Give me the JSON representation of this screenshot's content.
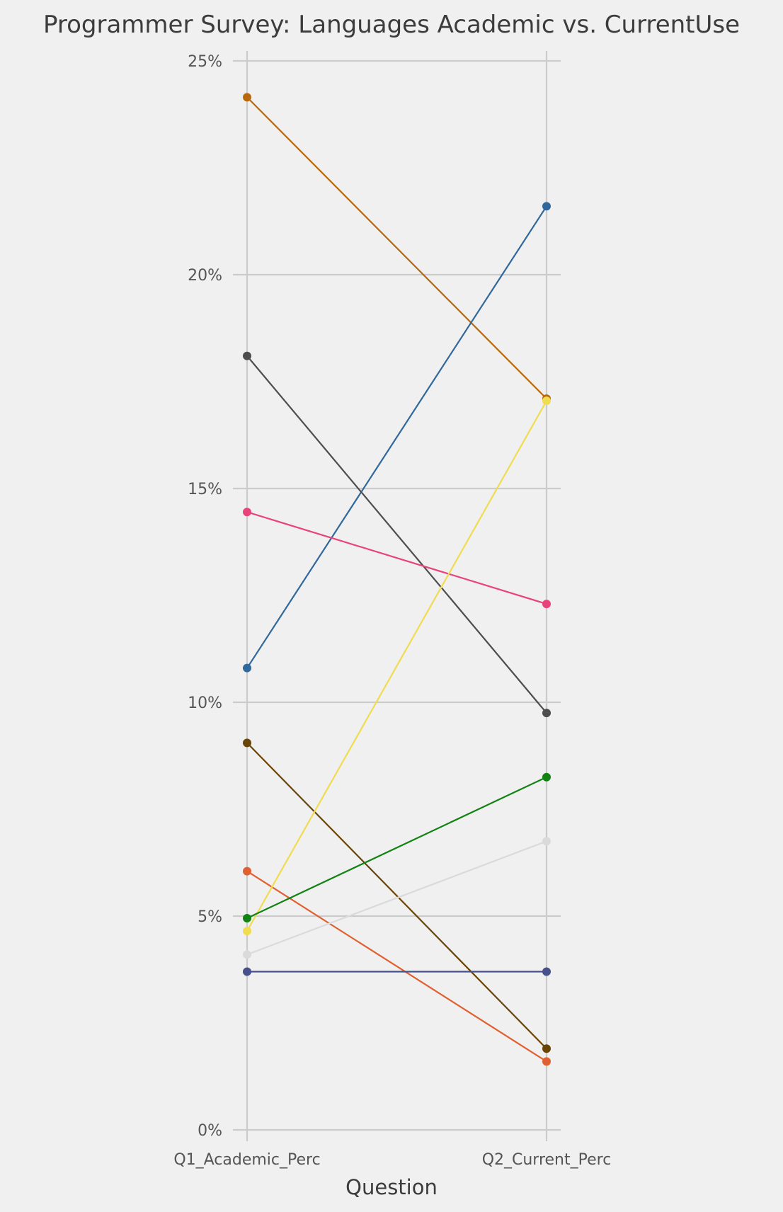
{
  "chart_data": {
    "type": "line",
    "title": "Programmer Survey: Languages Academic vs. CurrentUse",
    "xlabel": "Question",
    "ylabel": "",
    "categories": [
      "Q1_Academic_Perc",
      "Q2_Current_Perc"
    ],
    "ylim": [
      0,
      25
    ],
    "yticks": [
      0,
      5,
      10,
      15,
      20,
      25
    ],
    "ytick_labels": [
      "0%",
      "5%",
      "10%",
      "15%",
      "20%",
      "25%"
    ],
    "grid": true,
    "series": [
      {
        "color": "#b8690c",
        "values": [
          24.15,
          17.1
        ]
      },
      {
        "color": "#30689c",
        "values": [
          10.8,
          21.6
        ]
      },
      {
        "color": "#4d4d4d",
        "values": [
          18.1,
          9.75
        ]
      },
      {
        "color": "#e8437a",
        "values": [
          14.45,
          12.3
        ]
      },
      {
        "color": "#6a4508",
        "values": [
          9.05,
          1.9
        ]
      },
      {
        "color": "#e06030",
        "values": [
          6.05,
          1.6
        ]
      },
      {
        "color": "#f0dc50",
        "values": [
          4.65,
          17.05
        ]
      },
      {
        "color": "#128212",
        "values": [
          4.95,
          8.25
        ]
      },
      {
        "color": "#dadada",
        "values": [
          4.1,
          6.75
        ]
      },
      {
        "color": "#46508c",
        "values": [
          3.7,
          3.7
        ]
      }
    ]
  }
}
